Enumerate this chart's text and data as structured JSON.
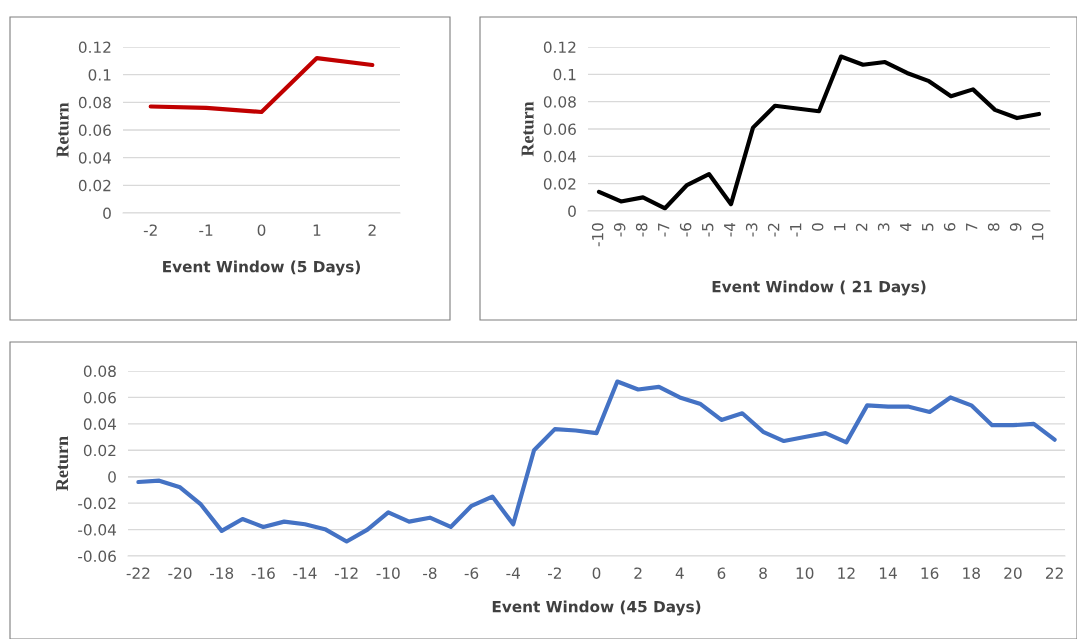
{
  "chart_data": [
    {
      "type": "line",
      "xlabel": "Event Window (5 Days)",
      "ylabel": "Return",
      "categories": [
        "-2",
        "-1",
        "0",
        "1",
        "2"
      ],
      "color": "#c00000",
      "values": [
        0.077,
        0.076,
        0.073,
        0.112,
        0.107
      ],
      "ylim": [
        0,
        0.12
      ],
      "yticks": [
        0,
        0.02,
        0.04,
        0.06,
        0.08,
        0.1,
        0.12
      ],
      "grid": "y"
    },
    {
      "type": "line",
      "xlabel": "Event Window ( 21 Days)",
      "ylabel": "Return",
      "categories": [
        "-10",
        "-9",
        "-8",
        "-7",
        "-6",
        "-5",
        "-4",
        "-3",
        "-2",
        "-1",
        "0",
        "1",
        "2",
        "3",
        "4",
        "5",
        "6",
        "7",
        "8",
        "9",
        "10"
      ],
      "color": "#000000",
      "values": [
        0.014,
        0.007,
        0.01,
        0.002,
        0.019,
        0.027,
        0.005,
        0.061,
        0.077,
        0.075,
        0.073,
        0.113,
        0.107,
        0.109,
        0.101,
        0.095,
        0.084,
        0.089,
        0.074,
        0.068,
        0.071
      ],
      "ylim": [
        0,
        0.12
      ],
      "yticks": [
        0,
        0.02,
        0.04,
        0.06,
        0.08,
        0.1,
        0.12
      ],
      "grid": "y"
    },
    {
      "type": "line",
      "xlabel": "Event Window (45 Days)",
      "ylabel": "Return",
      "categories": [
        "-22",
        null,
        "-20",
        null,
        "-18",
        null,
        "-16",
        null,
        "-14",
        null,
        "-12",
        null,
        "-10",
        null,
        "-8",
        null,
        "-6",
        null,
        "-4",
        null,
        "-2",
        null,
        "0",
        null,
        "2",
        null,
        "4",
        null,
        "6",
        null,
        "8",
        null,
        "10",
        null,
        "12",
        null,
        "14",
        null,
        "16",
        null,
        "18",
        null,
        "20",
        null,
        "22"
      ],
      "color": "#4472c4",
      "values": [
        -0.004,
        -0.003,
        -0.008,
        -0.021,
        -0.041,
        -0.032,
        -0.038,
        -0.034,
        -0.036,
        -0.04,
        -0.049,
        -0.04,
        -0.027,
        -0.034,
        -0.031,
        -0.038,
        -0.022,
        -0.015,
        -0.036,
        0.02,
        0.036,
        0.035,
        0.033,
        0.072,
        0.066,
        0.068,
        0.06,
        0.055,
        0.043,
        0.048,
        0.034,
        0.027,
        0.03,
        0.033,
        0.026,
        0.054,
        0.053,
        0.053,
        0.049,
        0.06,
        0.054,
        0.039,
        0.039,
        0.04,
        0.028
      ],
      "ylim": [
        -0.06,
        0.08
      ],
      "yticks": [
        -0.06,
        -0.04,
        -0.02,
        0,
        0.02,
        0.04,
        0.06,
        0.08
      ],
      "grid": "y"
    }
  ]
}
